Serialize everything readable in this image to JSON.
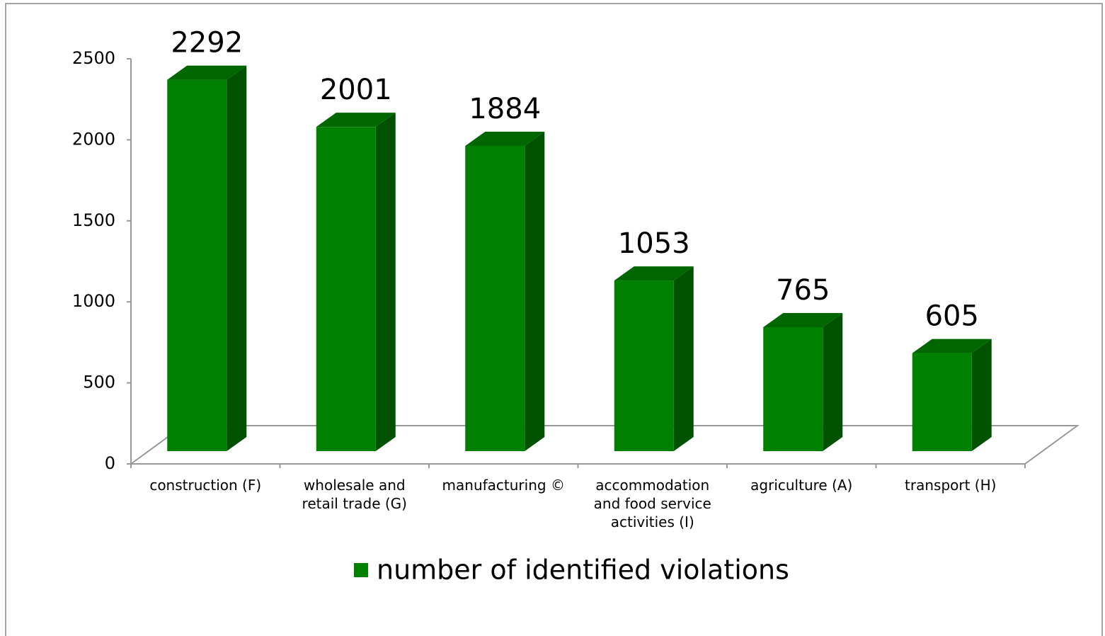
{
  "chart_data": {
    "type": "bar3d",
    "categories": [
      "construction (F)",
      "wholesale and retail trade (G)",
      "manufacturing ©",
      "accommodation and food service activities (I)",
      "agriculture (A)",
      "transport (H)"
    ],
    "series": [
      {
        "name": "number of identified violations",
        "color": "#008000",
        "values": [
          2292,
          2001,
          1884,
          1053,
          765,
          605
        ]
      }
    ],
    "ylim": [
      0,
      2500
    ],
    "yticks": [
      0,
      500,
      1000,
      1500,
      2000,
      2500
    ],
    "grid": false,
    "legend": "bottom"
  }
}
